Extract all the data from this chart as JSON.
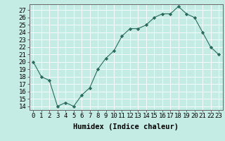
{
  "x": [
    0,
    1,
    2,
    3,
    4,
    5,
    6,
    7,
    8,
    9,
    10,
    11,
    12,
    13,
    14,
    15,
    16,
    17,
    18,
    19,
    20,
    21,
    22,
    23
  ],
  "y": [
    20,
    18,
    17.5,
    14,
    14.5,
    14,
    15.5,
    16.5,
    19,
    20.5,
    21.5,
    23.5,
    24.5,
    24.5,
    25,
    26,
    26.5,
    26.5,
    27.5,
    26.5,
    26,
    24,
    22,
    21
  ],
  "xlabel": "Humidex (Indice chaleur)",
  "xlim": [
    -0.5,
    23.5
  ],
  "ylim": [
    13.5,
    27.8
  ],
  "yticks": [
    14,
    15,
    16,
    17,
    18,
    19,
    20,
    21,
    22,
    23,
    24,
    25,
    26,
    27
  ],
  "xtick_labels": [
    "0",
    "1",
    "2",
    "3",
    "4",
    "5",
    "6",
    "7",
    "8",
    "9",
    "10",
    "11",
    "12",
    "13",
    "14",
    "15",
    "16",
    "17",
    "18",
    "19",
    "20",
    "21",
    "22",
    "23"
  ],
  "line_color": "#2a6b5e",
  "marker_color": "#2a6b5e",
  "bg_color": "#c5ece4",
  "grid_color": "#ffffff",
  "label_fontsize": 7.5,
  "tick_fontsize": 6.5
}
